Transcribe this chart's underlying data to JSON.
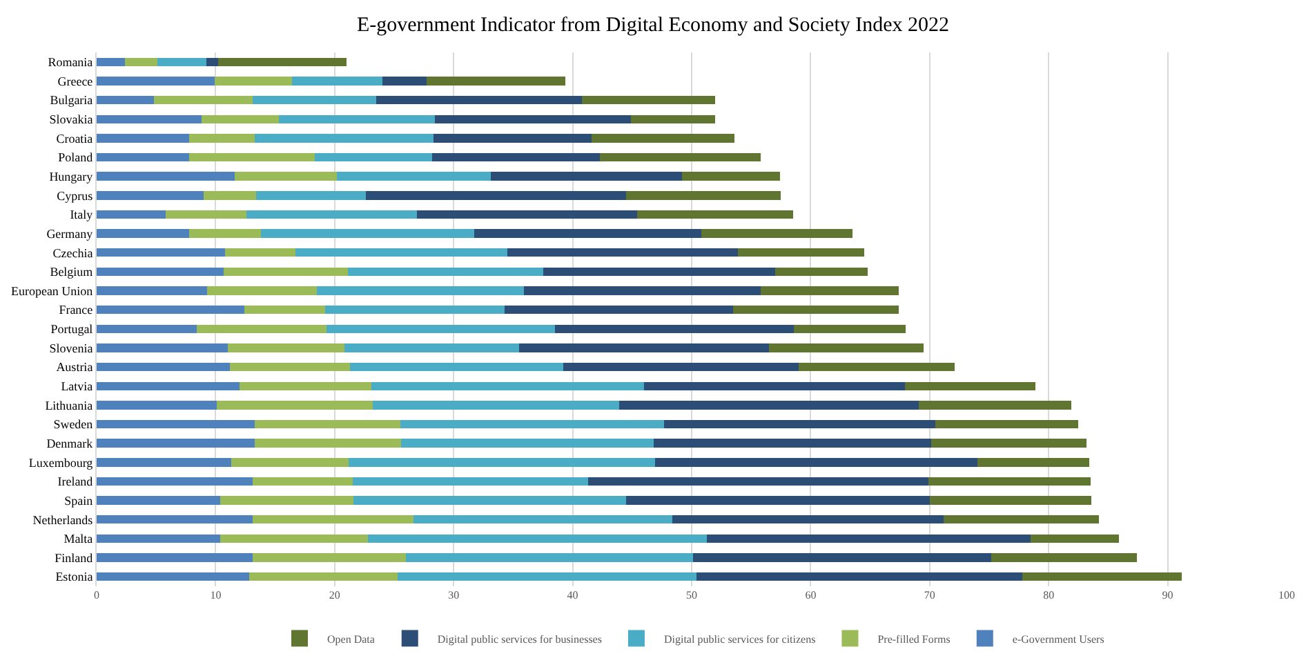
{
  "chart_data": {
    "type": "bar",
    "orientation": "horizontal",
    "stacked": true,
    "title": "E-government Indicator from Digital Economy and Society Index 2022",
    "categories": [
      "Romania",
      "Greece",
      "Bulgaria",
      "Slovakia",
      "Croatia",
      "Poland",
      "Hungary",
      "Cyprus",
      "Italy",
      "Germany",
      "Czechia",
      "Belgium",
      "European Union",
      "France",
      "Portugal",
      "Slovenia",
      "Austria",
      "Latvia",
      "Lithuania",
      "Sweden",
      "Denmark",
      "Luxembourg",
      "Ireland",
      "Spain",
      "Netherlands",
      "Malta",
      "Finland",
      "Estonia"
    ],
    "series": [
      {
        "name": "e-Government Users",
        "color": "#4f81bd",
        "values": [
          2.4,
          9.9,
          4.8,
          8.8,
          7.8,
          7.8,
          11.6,
          9.0,
          5.8,
          7.8,
          10.8,
          10.7,
          9.3,
          12.4,
          8.4,
          11.0,
          11.2,
          12.0,
          10.1,
          13.3,
          13.3,
          11.3,
          13.1,
          10.4,
          13.1,
          10.4,
          13.1,
          12.8
        ]
      },
      {
        "name": "Pre-filled Forms",
        "color": "#9bbb59",
        "values": [
          2.7,
          6.5,
          8.3,
          6.5,
          5.5,
          10.5,
          8.6,
          4.4,
          6.8,
          6.0,
          5.9,
          10.4,
          9.2,
          6.8,
          10.9,
          9.8,
          10.1,
          11.1,
          13.1,
          12.2,
          12.3,
          9.9,
          8.4,
          11.2,
          13.5,
          12.4,
          12.9,
          12.5
        ]
      },
      {
        "name": "Digital public services for citizens",
        "color": "#4bacc6",
        "values": [
          4.1,
          7.6,
          10.4,
          13.1,
          15.0,
          9.9,
          12.9,
          9.2,
          14.3,
          17.9,
          17.8,
          16.4,
          17.4,
          15.1,
          19.2,
          14.7,
          17.9,
          22.9,
          20.7,
          22.2,
          21.2,
          25.7,
          19.8,
          22.9,
          21.8,
          28.5,
          24.1,
          25.1
        ]
      },
      {
        "name": "Digital public services for businesses",
        "color": "#2c4d75",
        "values": [
          1.0,
          3.7,
          17.3,
          16.5,
          13.3,
          14.1,
          16.1,
          21.9,
          18.5,
          19.1,
          19.4,
          19.5,
          19.9,
          19.2,
          20.1,
          21.0,
          19.8,
          21.9,
          25.2,
          22.8,
          23.3,
          27.1,
          28.6,
          25.5,
          22.8,
          27.2,
          25.1,
          27.4
        ]
      },
      {
        "name": "Open Data",
        "color": "#5f7530",
        "values": [
          10.8,
          11.7,
          11.2,
          7.1,
          12.0,
          13.5,
          8.2,
          13.0,
          13.1,
          12.7,
          10.6,
          7.8,
          11.6,
          13.9,
          9.4,
          13.0,
          13.1,
          11.0,
          12.8,
          12.0,
          13.1,
          9.4,
          13.6,
          13.6,
          13.0,
          7.4,
          12.2,
          13.4
        ]
      }
    ],
    "xlim": [
      0,
      100
    ],
    "xticks": [
      0,
      10,
      20,
      30,
      40,
      50,
      60,
      70,
      80,
      90,
      100
    ],
    "grid": "x",
    "legend": "bottom"
  }
}
